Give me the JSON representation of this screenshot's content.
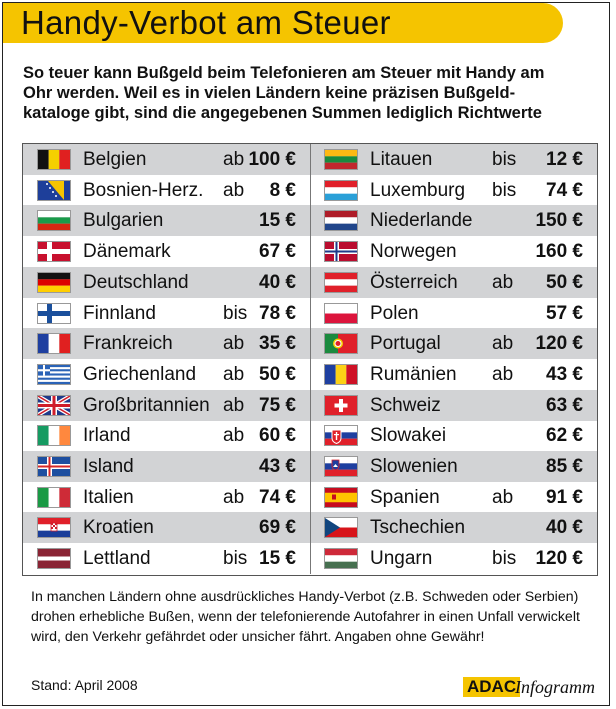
{
  "title": "Handy-Verbot am Steuer",
  "intro": [
    "So teuer kann Bußgeld beim Telefonieren am Steuer mit Handy am",
    "Ohr werden.  Weil es in vielen Ländern keine präzisen Bußgeld-",
    "kataloge gibt, sind die angegebenen Summen lediglich Richtwerte"
  ],
  "left_rows": [
    {
      "country": "Belgien",
      "prefix": "ab",
      "amount": "100 €",
      "flag_icon": "flag-belgium-icon"
    },
    {
      "country": "Bosnien-Herz.",
      "prefix": "ab",
      "amount": "8 €",
      "flag_icon": "flag-bosnia-icon"
    },
    {
      "country": "Bulgarien",
      "prefix": "",
      "amount": "15 €",
      "flag_icon": "flag-bulgaria-icon"
    },
    {
      "country": "Dänemark",
      "prefix": "",
      "amount": "67 €",
      "flag_icon": "flag-denmark-icon"
    },
    {
      "country": "Deutschland",
      "prefix": "",
      "amount": "40 €",
      "flag_icon": "flag-germany-icon"
    },
    {
      "country": "Finnland",
      "prefix": "bis",
      "amount": "78 €",
      "flag_icon": "flag-finland-icon"
    },
    {
      "country": "Frankreich",
      "prefix": "ab",
      "amount": "35 €",
      "flag_icon": "flag-france-icon"
    },
    {
      "country": "Griechenland",
      "prefix": "ab",
      "amount": "50 €",
      "flag_icon": "flag-greece-icon"
    },
    {
      "country": "Großbritannien",
      "prefix": "ab",
      "amount": "75 €",
      "flag_icon": "flag-uk-icon"
    },
    {
      "country": "Irland",
      "prefix": "ab",
      "amount": "60 €",
      "flag_icon": "flag-ireland-icon"
    },
    {
      "country": "Island",
      "prefix": "",
      "amount": "43 €",
      "flag_icon": "flag-iceland-icon"
    },
    {
      "country": "Italien",
      "prefix": "ab",
      "amount": "74 €",
      "flag_icon": "flag-italy-icon"
    },
    {
      "country": "Kroatien",
      "prefix": "",
      "amount": "69 €",
      "flag_icon": "flag-croatia-icon"
    },
    {
      "country": "Lettland",
      "prefix": "bis",
      "amount": "15 €",
      "flag_icon": "flag-latvia-icon"
    }
  ],
  "right_rows": [
    {
      "country": "Litauen",
      "prefix": "bis",
      "amount": "12 €",
      "flag_icon": "flag-lithuania-icon"
    },
    {
      "country": "Luxemburg",
      "prefix": "bis",
      "amount": "74 €",
      "flag_icon": "flag-luxembourg-icon"
    },
    {
      "country": "Niederlande",
      "prefix": "",
      "amount": "150 €",
      "flag_icon": "flag-netherlands-icon"
    },
    {
      "country": "Norwegen",
      "prefix": "",
      "amount": "160 €",
      "flag_icon": "flag-norway-icon"
    },
    {
      "country": "Österreich",
      "prefix": "ab",
      "amount": "50 €",
      "flag_icon": "flag-austria-icon"
    },
    {
      "country": "Polen",
      "prefix": "",
      "amount": "57 €",
      "flag_icon": "flag-poland-icon"
    },
    {
      "country": "Portugal",
      "prefix": "ab",
      "amount": "120 €",
      "flag_icon": "flag-portugal-icon"
    },
    {
      "country": "Rumänien",
      "prefix": "ab",
      "amount": "43 €",
      "flag_icon": "flag-romania-icon"
    },
    {
      "country": "Schweiz",
      "prefix": "",
      "amount": "63 €",
      "flag_icon": "flag-switzerland-icon"
    },
    {
      "country": "Slowakei",
      "prefix": "",
      "amount": "62 €",
      "flag_icon": "flag-slovakia-icon"
    },
    {
      "country": "Slowenien",
      "prefix": "",
      "amount": "85 €",
      "flag_icon": "flag-slovenia-icon"
    },
    {
      "country": "Spanien",
      "prefix": "ab",
      "amount": "91 €",
      "flag_icon": "flag-spain-icon"
    },
    {
      "country": "Tschechien",
      "prefix": "",
      "amount": "40 €",
      "flag_icon": "flag-czechia-icon"
    },
    {
      "country": "Ungarn",
      "prefix": "bis",
      "amount": "120 €",
      "flag_icon": "flag-hungary-icon"
    }
  ],
  "note": [
    "In manchen Ländern ohne ausdrückliches Handy-Verbot (z.B. Schweden oder Serbien)",
    "drohen erhebliche Bußen, wenn der telefonierende Autofahrer in einen Unfall verwickelt",
    "wird, den Verkehr gefährdet oder unsicher fährt. Angaben ohne Gewähr!"
  ],
  "stand": "Stand: April 2008",
  "logo": {
    "brand": "ADAC",
    "suffix": "Infogramm"
  },
  "colors": {
    "accent_yellow": "#f5c400",
    "row_shade": "#d2d3d5"
  }
}
